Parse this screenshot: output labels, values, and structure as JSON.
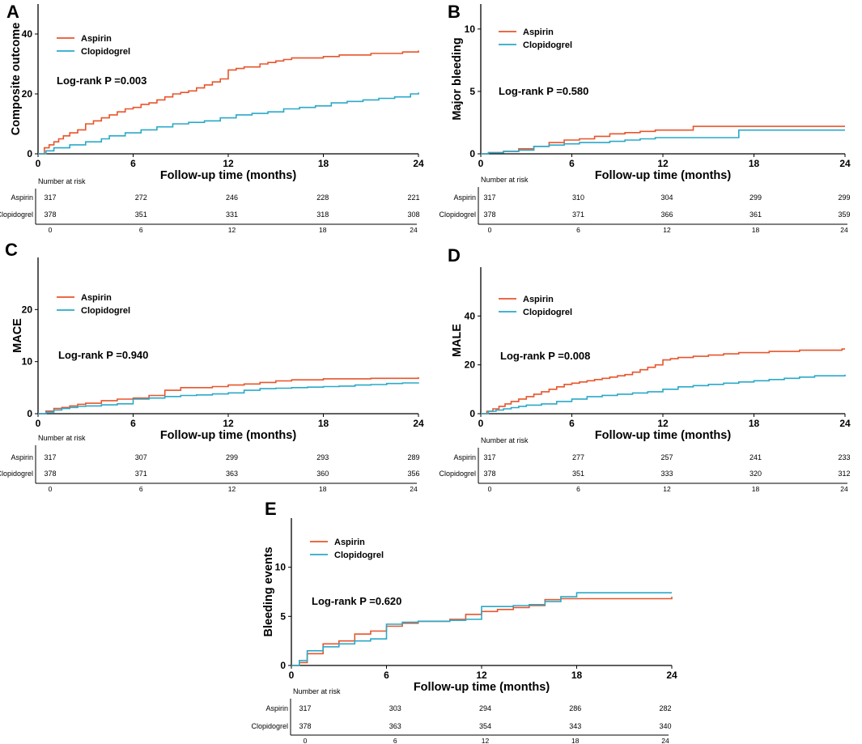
{
  "colors": {
    "aspirin": "#e8552b",
    "clopidogrel": "#2aa9c9",
    "axis": "#000000"
  },
  "chart_data": [
    {
      "panel": "A",
      "type": "line",
      "ylabel": "Composite outcome",
      "xlabel": "Follow-up time (months)",
      "xlim": [
        0,
        24
      ],
      "ylim": [
        0,
        50
      ],
      "xticks": [
        0,
        6,
        12,
        18,
        24
      ],
      "yticks": [
        0,
        20,
        40
      ],
      "legend": [
        "Aspirin",
        "Clopidogrel"
      ],
      "logrank": "Log-rank P =0.003",
      "series": [
        {
          "name": "Aspirin",
          "x": [
            0,
            0.4,
            0.7,
            1.0,
            1.3,
            1.6,
            2.0,
            2.5,
            3.0,
            3.5,
            4.0,
            4.5,
            5.0,
            5.5,
            6.0,
            6.5,
            7.0,
            7.5,
            8.0,
            8.5,
            9.0,
            9.5,
            10.0,
            10.5,
            11.0,
            11.5,
            12.0,
            12.5,
            13.0,
            14.0,
            14.5,
            15.0,
            15.5,
            16.0,
            17.0,
            18.0,
            19.0,
            20.0,
            21.0,
            22.0,
            23.0,
            23.8,
            24.0
          ],
          "y": [
            0,
            2,
            3,
            4,
            5,
            6,
            7,
            8,
            10,
            11,
            12,
            13,
            14,
            15,
            15.5,
            16.5,
            17,
            18,
            19,
            20,
            20.5,
            21,
            22,
            23,
            24,
            25,
            28,
            28.5,
            29,
            30,
            30.5,
            31,
            31.5,
            32,
            32,
            32.5,
            33,
            33,
            33.5,
            33.5,
            34,
            34,
            34.5
          ]
        },
        {
          "name": "Clopidogrel",
          "x": [
            0,
            0.5,
            1.0,
            2.0,
            3.0,
            4.0,
            4.5,
            5.5,
            6.5,
            7.5,
            8.5,
            9.5,
            10.5,
            11.5,
            12.5,
            13.5,
            14.5,
            15.5,
            16.5,
            17.5,
            18.5,
            19.5,
            20.5,
            21.5,
            22.5,
            23.5,
            24.0
          ],
          "y": [
            0,
            1,
            2,
            3,
            4,
            5,
            6,
            7,
            8,
            9,
            10,
            10.5,
            11,
            12,
            13,
            13.5,
            14,
            15,
            15.5,
            16,
            17,
            17.5,
            18,
            18.5,
            19,
            20,
            20.5
          ]
        }
      ],
      "risk_table": {
        "header": "Number at risk",
        "rows": [
          {
            "label": "Aspirin",
            "values": [
              317,
              272,
              246,
              228,
              221
            ]
          },
          {
            "label": "Clopidogrel",
            "values": [
              378,
              351,
              331,
              318,
              308
            ]
          }
        ],
        "ticks": [
          0,
          6,
          12,
          18,
          24
        ]
      }
    },
    {
      "panel": "B",
      "type": "line",
      "ylabel": "Major bleeding",
      "xlabel": "Follow-up time (months)",
      "xlim": [
        0,
        24
      ],
      "ylim": [
        0,
        12
      ],
      "xticks": [
        0,
        6,
        12,
        18,
        24
      ],
      "yticks": [
        0,
        5,
        10
      ],
      "legend": [
        "Aspirin",
        "Clopidogrel"
      ],
      "logrank": "Log-rank P =0.580",
      "series": [
        {
          "name": "Aspirin",
          "x": [
            0,
            0.5,
            1.5,
            2.5,
            3.5,
            4.5,
            5.5,
            6.5,
            7.5,
            8.5,
            9.5,
            10.5,
            11.5,
            12.5,
            13.5,
            14.0,
            15.0,
            16.0,
            17.0,
            18.0,
            19.0,
            20.0,
            21.0,
            22.0,
            23.0,
            24.0
          ],
          "y": [
            0,
            0.1,
            0.2,
            0.4,
            0.6,
            0.9,
            1.1,
            1.2,
            1.4,
            1.6,
            1.7,
            1.8,
            1.9,
            1.9,
            1.9,
            2.2,
            2.2,
            2.2,
            2.2,
            2.2,
            2.2,
            2.2,
            2.2,
            2.2,
            2.2,
            2.2
          ]
        },
        {
          "name": "Clopidogrel",
          "x": [
            0,
            0.5,
            1.5,
            2.5,
            3.5,
            4.5,
            5.5,
            6.5,
            7.5,
            8.5,
            9.5,
            10.5,
            11.5,
            12.5,
            13.5,
            14.5,
            15.5,
            16.5,
            17.0,
            18.0,
            19.0,
            20.0,
            21.0,
            22.0,
            23.0,
            24.0
          ],
          "y": [
            0,
            0.1,
            0.2,
            0.3,
            0.6,
            0.7,
            0.8,
            0.9,
            0.9,
            1.0,
            1.1,
            1.2,
            1.3,
            1.3,
            1.3,
            1.3,
            1.3,
            1.3,
            1.9,
            1.9,
            1.9,
            1.9,
            1.9,
            1.9,
            1.9,
            1.9
          ]
        }
      ],
      "risk_table": {
        "header": "Number at risk",
        "rows": [
          {
            "label": "Aspirin",
            "values": [
              317,
              310,
              304,
              299,
              299
            ]
          },
          {
            "label": "Clopidogrel",
            "values": [
              378,
              371,
              366,
              361,
              359
            ]
          }
        ],
        "ticks": [
          0,
          6,
          12,
          18,
          24
        ]
      }
    },
    {
      "panel": "C",
      "type": "line",
      "ylabel": "MACE",
      "xlabel": "Follow-up time (months)",
      "xlim": [
        0,
        24
      ],
      "ylim": [
        0,
        30
      ],
      "xticks": [
        0,
        6,
        12,
        18,
        24
      ],
      "yticks": [
        0,
        10,
        20
      ],
      "legend": [
        "Aspirin",
        "Clopidogrel"
      ],
      "logrank": "Log-rank P =0.940",
      "series": [
        {
          "name": "Aspirin",
          "x": [
            0,
            0.5,
            1.0,
            1.5,
            2.0,
            2.5,
            3.0,
            4.0,
            5.0,
            6.0,
            7.0,
            8.0,
            9.0,
            10.0,
            11.0,
            12.0,
            13.0,
            14.0,
            15.0,
            16.0,
            17.0,
            18.0,
            19.0,
            20.0,
            21.0,
            22.0,
            23.0,
            24.0
          ],
          "y": [
            0,
            0.5,
            1,
            1.2,
            1.5,
            1.8,
            2,
            2.5,
            2.8,
            3,
            3.5,
            4.5,
            5,
            5,
            5.2,
            5.5,
            5.7,
            6,
            6.3,
            6.5,
            6.5,
            6.7,
            6.7,
            6.7,
            6.8,
            6.8,
            6.8,
            7
          ]
        },
        {
          "name": "Clopidogrel",
          "x": [
            0,
            0.5,
            1.0,
            1.5,
            2.0,
            2.5,
            3.0,
            4.0,
            5.0,
            6.0,
            7.0,
            8.0,
            9.0,
            10.0,
            11.0,
            12.0,
            13.0,
            14.0,
            15.0,
            16.0,
            17.0,
            18.0,
            19.0,
            20.0,
            21.0,
            22.0,
            23.0,
            24.0
          ],
          "y": [
            0,
            0.3,
            0.7,
            1,
            1.2,
            1.4,
            1.5,
            1.7,
            1.9,
            2.8,
            3,
            3.3,
            3.5,
            3.6,
            3.8,
            4,
            4.5,
            4.8,
            4.9,
            5,
            5.1,
            5.2,
            5.3,
            5.5,
            5.6,
            5.8,
            5.9,
            6
          ]
        }
      ],
      "risk_table": {
        "header": "Number at risk",
        "rows": [
          {
            "label": "Aspirin",
            "values": [
              317,
              307,
              299,
              293,
              289
            ]
          },
          {
            "label": "Clopidogrel",
            "values": [
              378,
              371,
              363,
              360,
              356
            ]
          }
        ],
        "ticks": [
          0,
          6,
          12,
          18,
          24
        ]
      }
    },
    {
      "panel": "D",
      "type": "line",
      "ylabel": "MALE",
      "xlabel": "Follow-up time (months)",
      "xlim": [
        0,
        24
      ],
      "ylim": [
        0,
        60
      ],
      "xticks": [
        0,
        6,
        12,
        18,
        24
      ],
      "yticks": [
        0,
        20,
        40
      ],
      "legend": [
        "Aspirin",
        "Clopidogrel"
      ],
      "logrank": "Log-rank P =0.008",
      "series": [
        {
          "name": "Aspirin",
          "x": [
            0,
            0.4,
            0.8,
            1.2,
            1.6,
            2.0,
            2.5,
            3.0,
            3.5,
            4.0,
            4.5,
            5.0,
            5.5,
            6.0,
            6.5,
            7.0,
            7.5,
            8.0,
            8.5,
            9.0,
            9.5,
            10.0,
            10.5,
            11.0,
            11.5,
            12.0,
            12.5,
            13.0,
            14.0,
            15.0,
            16.0,
            17.0,
            18.0,
            19.0,
            20.0,
            21.0,
            22.0,
            23.0,
            23.8,
            24.0
          ],
          "y": [
            0,
            1,
            2,
            3,
            4,
            5,
            6,
            7,
            8,
            9,
            10,
            11,
            12,
            12.5,
            13,
            13.5,
            14,
            14.5,
            15,
            15.5,
            16,
            17,
            18,
            19,
            20,
            22,
            22.5,
            23,
            23.5,
            24,
            24.5,
            25,
            25,
            25.5,
            25.5,
            26,
            26,
            26,
            26.5,
            26.5
          ]
        },
        {
          "name": "Clopidogrel",
          "x": [
            0,
            0.5,
            1.0,
            1.5,
            2.0,
            2.5,
            3.0,
            4.0,
            5.0,
            6.0,
            7.0,
            8.0,
            9.0,
            10.0,
            11.0,
            12.0,
            13.0,
            14.0,
            15.0,
            16.0,
            17.0,
            18.0,
            19.0,
            20.0,
            21.0,
            22.0,
            23.0,
            24.0
          ],
          "y": [
            0,
            1,
            1.5,
            2,
            2.5,
            3,
            3.5,
            4,
            5,
            6,
            7,
            7.5,
            8,
            8.5,
            9,
            10,
            11,
            11.5,
            12,
            12.5,
            13,
            13.5,
            14,
            14.5,
            15,
            15.5,
            15.5,
            16
          ]
        }
      ],
      "risk_table": {
        "header": "Number at risk",
        "rows": [
          {
            "label": "Aspirin",
            "values": [
              317,
              277,
              257,
              241,
              233
            ]
          },
          {
            "label": "Clopidogrel",
            "values": [
              378,
              351,
              333,
              320,
              312
            ]
          }
        ],
        "ticks": [
          0,
          6,
          12,
          18,
          24
        ]
      }
    },
    {
      "panel": "E",
      "type": "line",
      "ylabel": "Bleeding events",
      "xlabel": "Follow-up time (months)",
      "xlim": [
        0,
        24
      ],
      "ylim": [
        0,
        15
      ],
      "xticks": [
        0,
        6,
        12,
        18,
        24
      ],
      "yticks": [
        0,
        5,
        10
      ],
      "legend": [
        "Aspirin",
        "Clopidogrel"
      ],
      "logrank": "Log-rank P =0.620",
      "series": [
        {
          "name": "Aspirin",
          "x": [
            0,
            0.5,
            1.0,
            2.0,
            3.0,
            4.0,
            5.0,
            6.0,
            7.0,
            8.0,
            9.0,
            10.0,
            11.0,
            12.0,
            13.0,
            14.0,
            15.0,
            16.0,
            17.0,
            18.0,
            19.0,
            20.0,
            21.0,
            22.0,
            23.0,
            24.0
          ],
          "y": [
            0,
            0.3,
            1.2,
            2.2,
            2.5,
            3.2,
            3.5,
            4,
            4.3,
            4.5,
            4.5,
            4.7,
            5.2,
            5.5,
            5.7,
            5.9,
            6.1,
            6.7,
            6.8,
            6.8,
            6.8,
            6.8,
            6.8,
            6.8,
            6.8,
            7
          ]
        },
        {
          "name": "Clopidogrel",
          "x": [
            0,
            0.5,
            1.0,
            2.0,
            3.0,
            4.0,
            5.0,
            6.0,
            7.0,
            8.0,
            9.0,
            10.0,
            11.0,
            12.0,
            13.0,
            14.0,
            15.0,
            16.0,
            17.0,
            18.0,
            19.0,
            20.0,
            21.0,
            22.0,
            23.0,
            24.0
          ],
          "y": [
            0,
            0.5,
            1.5,
            1.9,
            2.2,
            2.5,
            2.7,
            4.2,
            4.4,
            4.5,
            4.5,
            4.6,
            4.7,
            6,
            6,
            6.1,
            6.2,
            6.5,
            7,
            7.4,
            7.4,
            7.4,
            7.4,
            7.4,
            7.4,
            7.4
          ]
        }
      ],
      "risk_table": {
        "header": "Number at risk",
        "rows": [
          {
            "label": "Aspirin",
            "values": [
              317,
              303,
              294,
              286,
              282
            ]
          },
          {
            "label": "Clopidogrel",
            "values": [
              378,
              363,
              354,
              343,
              340
            ]
          }
        ],
        "ticks": [
          0,
          6,
          12,
          18,
          24
        ]
      }
    }
  ]
}
